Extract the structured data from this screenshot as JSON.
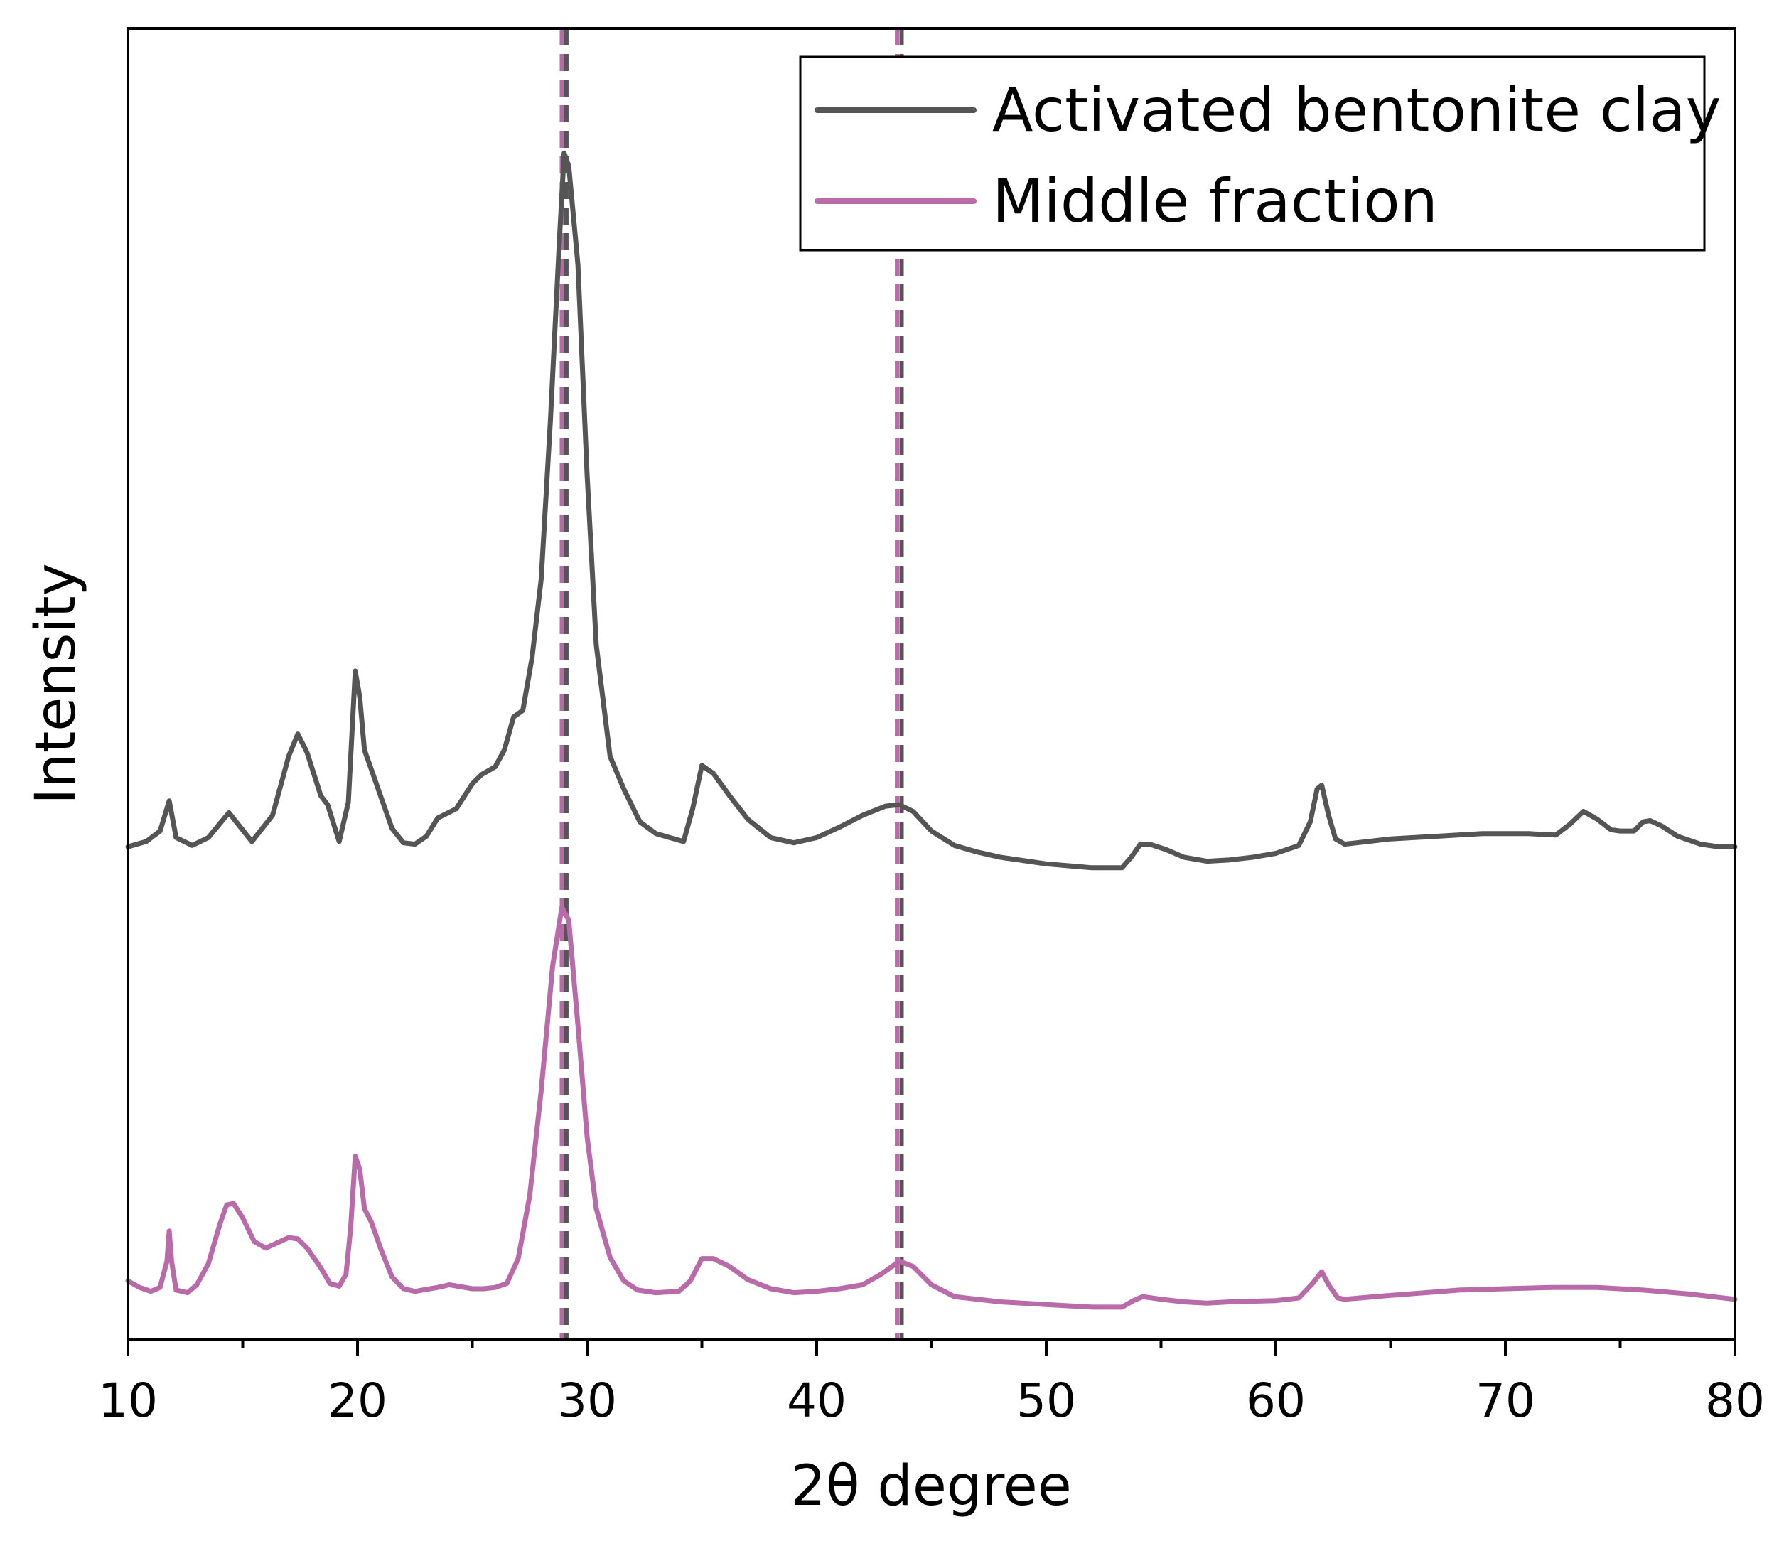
{
  "chart_data": {
    "type": "line",
    "xlabel": "2θ degree",
    "ylabel": "Intensity",
    "xlim": [
      10,
      80
    ],
    "ylim": [
      0,
      100
    ],
    "xticks": [
      "10",
      "20",
      "30",
      "40",
      "50",
      "60",
      "70",
      "80"
    ],
    "grid": false,
    "legend": {
      "placement": "top-right"
    },
    "series": [
      {
        "name": "Activated bentonite clay",
        "color": "#555555",
        "points": [
          [
            10,
            37.6
          ],
          [
            10.8,
            38.0
          ],
          [
            11.4,
            38.8
          ],
          [
            11.8,
            41.1
          ],
          [
            12.1,
            38.3
          ],
          [
            12.8,
            37.7
          ],
          [
            13.5,
            38.3
          ],
          [
            14.4,
            40.2
          ],
          [
            15.4,
            38.0
          ],
          [
            16.3,
            40.0
          ],
          [
            17.0,
            44.5
          ],
          [
            17.4,
            46.2
          ],
          [
            17.8,
            44.8
          ],
          [
            18.4,
            41.5
          ],
          [
            18.7,
            40.8
          ],
          [
            19.2,
            38.0
          ],
          [
            19.6,
            41.0
          ],
          [
            19.9,
            51.0
          ],
          [
            20.1,
            49.0
          ],
          [
            20.3,
            45.0
          ],
          [
            20.6,
            43.5
          ],
          [
            21.0,
            41.5
          ],
          [
            21.5,
            39.0
          ],
          [
            22.0,
            37.9
          ],
          [
            22.5,
            37.8
          ],
          [
            23.0,
            38.4
          ],
          [
            23.5,
            39.8
          ],
          [
            24.3,
            40.5
          ],
          [
            25.0,
            42.4
          ],
          [
            25.4,
            43.1
          ],
          [
            26.0,
            43.7
          ],
          [
            26.4,
            45.0
          ],
          [
            26.8,
            47.5
          ],
          [
            27.2,
            48.0
          ],
          [
            27.6,
            52.0
          ],
          [
            28.0,
            58.0
          ],
          [
            28.4,
            70.0
          ],
          [
            28.8,
            84.0
          ],
          [
            29.0,
            90.5
          ],
          [
            29.2,
            89.5
          ],
          [
            29.6,
            82.0
          ],
          [
            30.0,
            66.0
          ],
          [
            30.4,
            53.0
          ],
          [
            31.0,
            44.5
          ],
          [
            31.6,
            42.0
          ],
          [
            32.3,
            39.5
          ],
          [
            33.0,
            38.6
          ],
          [
            33.6,
            38.3
          ],
          [
            34.2,
            38.0
          ],
          [
            34.6,
            40.5
          ],
          [
            35.0,
            43.8
          ],
          [
            35.5,
            43.2
          ],
          [
            36.2,
            41.5
          ],
          [
            37.0,
            39.7
          ],
          [
            38.0,
            38.3
          ],
          [
            39.0,
            37.9
          ],
          [
            40.0,
            38.3
          ],
          [
            41.0,
            39.1
          ],
          [
            42.0,
            40.0
          ],
          [
            43.0,
            40.7
          ],
          [
            43.6,
            40.8
          ],
          [
            44.2,
            40.3
          ],
          [
            45.0,
            38.8
          ],
          [
            46.0,
            37.7
          ],
          [
            47.0,
            37.2
          ],
          [
            48.0,
            36.8
          ],
          [
            50.0,
            36.3
          ],
          [
            52.0,
            36.0
          ],
          [
            53.3,
            36.0
          ],
          [
            53.7,
            36.8
          ],
          [
            54.1,
            37.8
          ],
          [
            54.5,
            37.8
          ],
          [
            55.2,
            37.4
          ],
          [
            56.0,
            36.8
          ],
          [
            57.0,
            36.5
          ],
          [
            58.0,
            36.6
          ],
          [
            59.0,
            36.8
          ],
          [
            60.0,
            37.1
          ],
          [
            61.0,
            37.7
          ],
          [
            61.5,
            39.5
          ],
          [
            61.8,
            42.0
          ],
          [
            62.0,
            42.3
          ],
          [
            62.3,
            40.0
          ],
          [
            62.6,
            38.2
          ],
          [
            63.0,
            37.8
          ],
          [
            65.0,
            38.2
          ],
          [
            67.0,
            38.4
          ],
          [
            69.0,
            38.6
          ],
          [
            71.0,
            38.6
          ],
          [
            72.2,
            38.5
          ],
          [
            72.8,
            39.3
          ],
          [
            73.4,
            40.3
          ],
          [
            74.0,
            39.7
          ],
          [
            74.6,
            38.9
          ],
          [
            75.0,
            38.8
          ],
          [
            75.6,
            38.8
          ],
          [
            76.0,
            39.5
          ],
          [
            76.3,
            39.6
          ],
          [
            76.8,
            39.2
          ],
          [
            77.5,
            38.4
          ],
          [
            78.5,
            37.8
          ],
          [
            79.3,
            37.6
          ],
          [
            80,
            37.6
          ]
        ]
      },
      {
        "name": "Middle fraction",
        "color": "#b96aa8",
        "points": [
          [
            10,
            4.5
          ],
          [
            10.5,
            4.0
          ],
          [
            11.0,
            3.7
          ],
          [
            11.4,
            4.0
          ],
          [
            11.7,
            6.0
          ],
          [
            11.8,
            8.3
          ],
          [
            11.9,
            6.0
          ],
          [
            12.1,
            3.8
          ],
          [
            12.6,
            3.6
          ],
          [
            13.0,
            4.2
          ],
          [
            13.5,
            5.8
          ],
          [
            14.0,
            8.8
          ],
          [
            14.3,
            10.3
          ],
          [
            14.6,
            10.4
          ],
          [
            15.0,
            9.3
          ],
          [
            15.5,
            7.5
          ],
          [
            16.0,
            7.0
          ],
          [
            16.5,
            7.4
          ],
          [
            17.0,
            7.8
          ],
          [
            17.4,
            7.7
          ],
          [
            17.8,
            7.0
          ],
          [
            18.4,
            5.5
          ],
          [
            18.8,
            4.3
          ],
          [
            19.2,
            4.1
          ],
          [
            19.5,
            5.0
          ],
          [
            19.7,
            8.5
          ],
          [
            19.9,
            14.0
          ],
          [
            20.1,
            13.0
          ],
          [
            20.3,
            10.0
          ],
          [
            20.6,
            9.0
          ],
          [
            21.0,
            7.0
          ],
          [
            21.5,
            4.8
          ],
          [
            22.0,
            3.9
          ],
          [
            22.5,
            3.7
          ],
          [
            23.5,
            4.0
          ],
          [
            24.0,
            4.2
          ],
          [
            25.0,
            3.9
          ],
          [
            25.5,
            3.9
          ],
          [
            26.0,
            4.0
          ],
          [
            26.5,
            4.3
          ],
          [
            27.0,
            6.2
          ],
          [
            27.5,
            11.0
          ],
          [
            28.0,
            19.0
          ],
          [
            28.5,
            28.5
          ],
          [
            28.9,
            33.0
          ],
          [
            29.2,
            32.0
          ],
          [
            29.6,
            24.0
          ],
          [
            30.0,
            15.5
          ],
          [
            30.4,
            10.0
          ],
          [
            31.0,
            6.3
          ],
          [
            31.6,
            4.5
          ],
          [
            32.2,
            3.8
          ],
          [
            33.0,
            3.6
          ],
          [
            34.0,
            3.7
          ],
          [
            34.5,
            4.5
          ],
          [
            35.0,
            6.2
          ],
          [
            35.5,
            6.2
          ],
          [
            36.2,
            5.6
          ],
          [
            37.0,
            4.6
          ],
          [
            38.0,
            3.9
          ],
          [
            39.0,
            3.6
          ],
          [
            40.0,
            3.7
          ],
          [
            41.0,
            3.9
          ],
          [
            42.0,
            4.2
          ],
          [
            42.8,
            5.0
          ],
          [
            43.6,
            6.0
          ],
          [
            44.2,
            5.6
          ],
          [
            45.0,
            4.2
          ],
          [
            46.0,
            3.3
          ],
          [
            47.0,
            3.1
          ],
          [
            48.0,
            2.9
          ],
          [
            50.0,
            2.7
          ],
          [
            52.0,
            2.5
          ],
          [
            53.3,
            2.5
          ],
          [
            53.8,
            3.0
          ],
          [
            54.2,
            3.3
          ],
          [
            55.0,
            3.1
          ],
          [
            56.0,
            2.9
          ],
          [
            57.0,
            2.8
          ],
          [
            58.0,
            2.9
          ],
          [
            60.0,
            3.0
          ],
          [
            61.0,
            3.2
          ],
          [
            61.6,
            4.3
          ],
          [
            62.0,
            5.2
          ],
          [
            62.3,
            4.2
          ],
          [
            62.7,
            3.2
          ],
          [
            63.0,
            3.1
          ],
          [
            65.0,
            3.4
          ],
          [
            68.0,
            3.8
          ],
          [
            70.0,
            3.9
          ],
          [
            72.0,
            4.0
          ],
          [
            74.0,
            4.0
          ],
          [
            76.0,
            3.8
          ],
          [
            78.0,
            3.5
          ],
          [
            80.0,
            3.1
          ]
        ]
      }
    ],
    "reference_lines": [
      {
        "x": 28.9,
        "color": "#b96aa8",
        "style": "dashed"
      },
      {
        "x": 29.1,
        "color": "#555555",
        "style": "dashed"
      },
      {
        "x": 43.5,
        "color": "#b96aa8",
        "style": "dashed"
      },
      {
        "x": 43.7,
        "color": "#555555",
        "style": "dashed"
      }
    ]
  }
}
